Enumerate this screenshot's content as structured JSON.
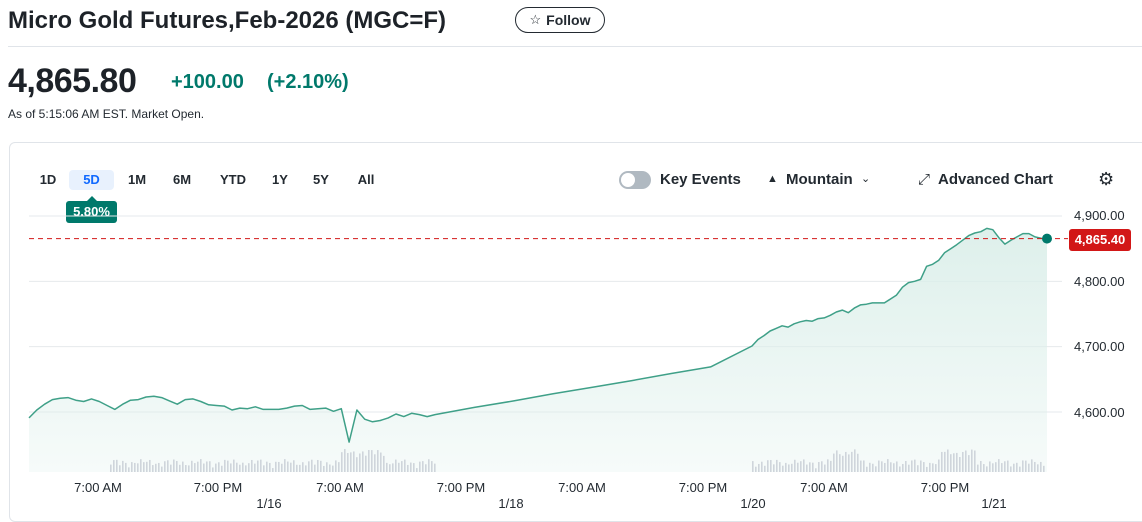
{
  "header": {
    "title": "Micro Gold Futures,Feb-2026 (MGC=F)",
    "follow_label": "Follow"
  },
  "quote": {
    "price": "4,865.80",
    "change": "+100.00",
    "change_pct": "(+2.10%)",
    "as_of": "As of 5:15:06 AM EST. Market Open."
  },
  "range_tabs": [
    {
      "label": "1D",
      "active": false
    },
    {
      "label": "5D",
      "active": true
    },
    {
      "label": "1M",
      "active": false
    },
    {
      "label": "6M",
      "active": false
    },
    {
      "label": "YTD",
      "active": false
    },
    {
      "label": "1Y",
      "active": false
    },
    {
      "label": "5Y",
      "active": false
    },
    {
      "label": "All",
      "active": false
    }
  ],
  "period_performance": "5.80%",
  "controls": {
    "key_events_label": "Key Events",
    "key_events_on": false,
    "chart_type_label": "Mountain",
    "advanced_chart_label": "Advanced Chart"
  },
  "icons": {
    "follow": "star-icon",
    "chart_type": "mountain-icon",
    "dropdown": "chevron-down-icon",
    "advanced": "expand-arrows-icon",
    "settings": "gear-icon"
  },
  "colors": {
    "up": "#00796b",
    "line": "#3fa088",
    "fill": "#dcefea",
    "last_price": "#d21717",
    "active_tab": "#0f69ff"
  },
  "chart_data": {
    "type": "area",
    "y_tick_labels": [
      "4,900.00",
      "4,800.00",
      "4,700.00",
      "4,600.00"
    ],
    "y_ticks": [
      4900,
      4800,
      4700,
      4600
    ],
    "ylim": [
      4530,
      4918
    ],
    "x_tick_labels": [
      "7:00 AM",
      "7:00 PM",
      "7:00 AM",
      "7:00 PM",
      "7:00 AM",
      "7:00 PM",
      "7:00 AM",
      "7:00 PM"
    ],
    "date_labels": [
      "1/16",
      "1/18",
      "1/20",
      "1/21"
    ],
    "last_price_label": "4,865.40",
    "last_price": 4865.4,
    "series": [
      {
        "values": [
          4591,
          4603,
          4612,
          4619,
          4621,
          4622,
          4618,
          4616,
          4620,
          4616,
          4610,
          4604,
          4612,
          4618,
          4619,
          4623,
          4624,
          4622,
          4617,
          4612,
          4619,
          4620,
          4616,
          4611,
          4610,
          4609,
          4603,
          4606,
          4605,
          4608,
          4604,
          4604,
          4604,
          4606,
          4609,
          4610,
          4604,
          4605,
          4606,
          4601,
          4605,
          4554,
          4603,
          4589,
          4585,
          4587,
          4591,
          4597,
          4593,
          4598,
          4596,
          4593,
          4596,
          4607,
          4617,
          4628,
          4638,
          4648,
          4659,
          4669,
          4701,
          4711,
          4717,
          4724,
          4728,
          4732,
          4730,
          4735,
          4738,
          4740,
          4739,
          4743,
          4744,
          4748,
          4753,
          4756,
          4752,
          4759,
          4764,
          4765,
          4767,
          4767,
          4767,
          4773,
          4779,
          4791,
          4798,
          4800,
          4803,
          4823,
          4826,
          4832,
          4844,
          4850,
          4856,
          4863,
          4870,
          4874,
          4876,
          4881,
          4879,
          4867,
          4857,
          4863,
          4868,
          4873,
          4873,
          4868,
          4866,
          4865.4
        ]
      }
    ]
  }
}
